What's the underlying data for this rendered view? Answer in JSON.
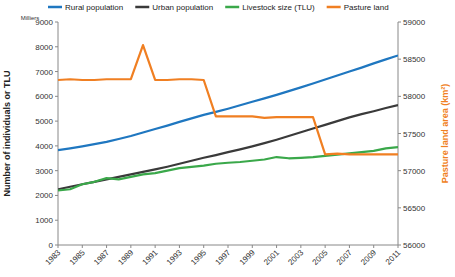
{
  "chart_data": {
    "type": "line",
    "y_label": "Number of individuals or TLU",
    "y2_label": "Pasture land area (km²)",
    "annotations": [
      "Milliers"
    ],
    "x": [
      1983,
      1984,
      1985,
      1986,
      1987,
      1988,
      1989,
      1990,
      1991,
      1992,
      1993,
      1994,
      1995,
      1996,
      1997,
      1998,
      1999,
      2000,
      2001,
      2002,
      2003,
      2004,
      2005,
      2006,
      2007,
      2008,
      2009,
      2010,
      2011
    ],
    "xlim": [
      1983,
      2011
    ],
    "xticks": [
      1983,
      1985,
      1987,
      1989,
      1991,
      1993,
      1995,
      1997,
      1999,
      2001,
      2003,
      2005,
      2007,
      2009,
      2011
    ],
    "ylim": [
      0,
      9000
    ],
    "yticks": [
      0,
      1000,
      2000,
      3000,
      4000,
      5000,
      6000,
      7000,
      8000,
      9000
    ],
    "y2lim": [
      56000,
      59000
    ],
    "y2ticks": [
      56000,
      56500,
      57000,
      57500,
      58000,
      58500,
      59000
    ],
    "grid": false,
    "legend": "top",
    "series": [
      {
        "name": "Rural population",
        "color": "#1f77c0",
        "values": [
          3830,
          3900,
          3980,
          4070,
          4160,
          4280,
          4400,
          4540,
          4680,
          4820,
          4970,
          5110,
          5250,
          5370,
          5500,
          5640,
          5780,
          5920,
          6060,
          6210,
          6360,
          6520,
          6680,
          6840,
          7000,
          7160,
          7330,
          7490,
          7650
        ]
      },
      {
        "name": "Urban population",
        "color": "#3a3a3a",
        "values": [
          2250,
          2350,
          2450,
          2550,
          2650,
          2750,
          2850,
          2950,
          3050,
          3160,
          3280,
          3400,
          3520,
          3630,
          3750,
          3860,
          3980,
          4110,
          4250,
          4400,
          4550,
          4700,
          4850,
          5000,
          5150,
          5280,
          5400,
          5530,
          5650
        ]
      },
      {
        "name": "Livestock size (TLU)",
        "color": "#3aa84a",
        "values": [
          2200,
          2250,
          2450,
          2550,
          2700,
          2650,
          2750,
          2850,
          2900,
          3000,
          3100,
          3150,
          3200,
          3280,
          3320,
          3350,
          3400,
          3450,
          3550,
          3500,
          3520,
          3550,
          3600,
          3650,
          3700,
          3750,
          3800,
          3900,
          3950
        ]
      },
      {
        "name": "Pasture land",
        "color": "#f07f22",
        "axis": "y2",
        "values": [
          58220,
          58230,
          58220,
          58220,
          58230,
          58230,
          58230,
          58690,
          58220,
          58220,
          58230,
          58230,
          58220,
          57730,
          57730,
          57730,
          57730,
          57710,
          57720,
          57720,
          57720,
          57720,
          57220,
          57230,
          57220,
          57220,
          57220,
          57220,
          57220
        ]
      }
    ]
  }
}
